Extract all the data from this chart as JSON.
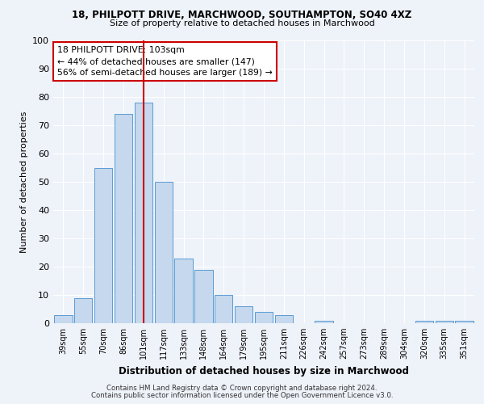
{
  "title1": "18, PHILPOTT DRIVE, MARCHWOOD, SOUTHAMPTON, SO40 4XZ",
  "title2": "Size of property relative to detached houses in Marchwood",
  "xlabel": "Distribution of detached houses by size in Marchwood",
  "ylabel": "Number of detached properties",
  "categories": [
    "39sqm",
    "55sqm",
    "70sqm",
    "86sqm",
    "101sqm",
    "117sqm",
    "133sqm",
    "148sqm",
    "164sqm",
    "179sqm",
    "195sqm",
    "211sqm",
    "226sqm",
    "242sqm",
    "257sqm",
    "273sqm",
    "289sqm",
    "304sqm",
    "320sqm",
    "335sqm",
    "351sqm"
  ],
  "values": [
    3,
    9,
    55,
    74,
    78,
    50,
    23,
    19,
    10,
    6,
    4,
    3,
    0,
    1,
    0,
    0,
    0,
    0,
    1,
    1,
    1
  ],
  "bar_color": "#c5d8ed",
  "bar_edge_color": "#5b9bd5",
  "vline_x_index": 4,
  "vline_color": "#cc0000",
  "annotation_text": "18 PHILPOTT DRIVE: 103sqm\n← 44% of detached houses are smaller (147)\n56% of semi-detached houses are larger (189) →",
  "annotation_box_color": "#ffffff",
  "annotation_box_edge": "#cc0000",
  "footer1": "Contains HM Land Registry data © Crown copyright and database right 2024.",
  "footer2": "Contains public sector information licensed under the Open Government Licence v3.0.",
  "ylim": [
    0,
    100
  ],
  "background_color": "#eef2f9",
  "grid_color": "#ffffff"
}
